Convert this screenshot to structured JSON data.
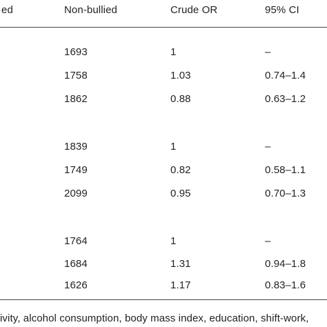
{
  "table": {
    "headers": {
      "col1": "ed",
      "col2": "Non-bullied",
      "col3": "Crude OR",
      "col4": "95% CI"
    },
    "groups": [
      {
        "rows": [
          {
            "non_bullied": "1693",
            "crude_or": "1",
            "ci": "–"
          },
          {
            "non_bullied": "1758",
            "crude_or": "1.03",
            "ci": "0.74–1.4"
          },
          {
            "non_bullied": "1862",
            "crude_or": "0.88",
            "ci": "0.63–1.2"
          }
        ]
      },
      {
        "rows": [
          {
            "non_bullied": "1839",
            "crude_or": "1",
            "ci": "–"
          },
          {
            "non_bullied": "1749",
            "crude_or": "0.82",
            "ci": "0.58–1.1"
          },
          {
            "non_bullied": "2099",
            "crude_or": "0.95",
            "ci": "0.70–1.3"
          }
        ]
      },
      {
        "rows": [
          {
            "non_bullied": "1764",
            "crude_or": "1",
            "ci": "–"
          },
          {
            "non_bullied": "1684",
            "crude_or": "1.31",
            "ci": "0.94–1.8"
          },
          {
            "non_bullied": "1626",
            "crude_or": "1.17",
            "ci": "0.83–1.6"
          }
        ]
      }
    ],
    "footnote": "ivity, alcohol consumption, body mass index, education, shift-work,"
  }
}
